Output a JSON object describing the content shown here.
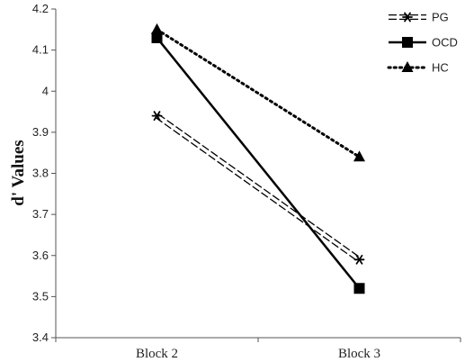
{
  "chart_data": {
    "type": "line",
    "title": "",
    "xlabel": "",
    "ylabel": "d' Values",
    "categories": [
      "Block 2",
      "Block 3"
    ],
    "ylim": [
      3.4,
      4.2
    ],
    "yticks": [
      3.4,
      3.5,
      3.6,
      3.7,
      3.8,
      3.9,
      4,
      4.1,
      4.2
    ],
    "ytick_labels": [
      "3.4",
      "3.5",
      "3.6",
      "3.7",
      "3.8",
      "3.9",
      "4",
      "4.1",
      "4.2"
    ],
    "grid": false,
    "legend_position": "top-right",
    "series": [
      {
        "name": "PG",
        "values": [
          3.94,
          3.59
        ],
        "line_style": "double-dashed",
        "marker": "asterisk",
        "color": "#000000"
      },
      {
        "name": "OCD",
        "values": [
          4.13,
          3.52
        ],
        "line_style": "solid",
        "marker": "square",
        "color": "#000000"
      },
      {
        "name": "HC",
        "values": [
          4.15,
          3.84
        ],
        "line_style": "dotted",
        "marker": "triangle",
        "color": "#000000"
      }
    ]
  }
}
